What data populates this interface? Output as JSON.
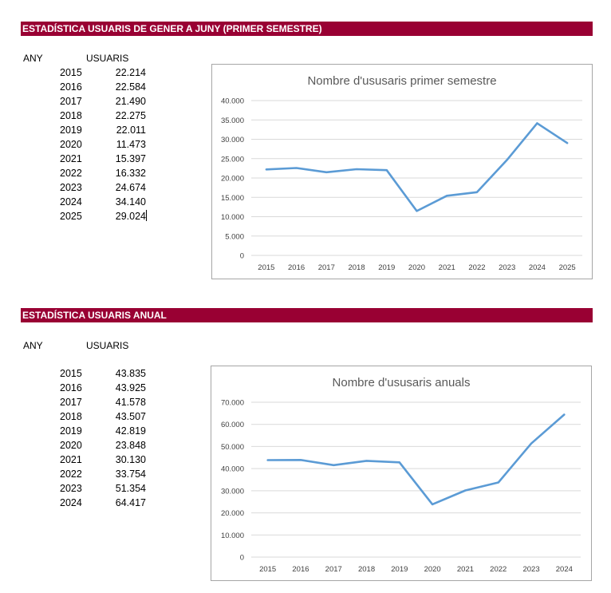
{
  "section1": {
    "banner": "ESTADÍSTICA USUARIS DE GENER A JUNY (PRIMER SEMESTRE)",
    "col_any": "ANY",
    "col_usuaris": "USUARIS",
    "rows": [
      {
        "year": "2015",
        "value": "22.214"
      },
      {
        "year": "2016",
        "value": "22.584"
      },
      {
        "year": "2017",
        "value": "21.490"
      },
      {
        "year": "2018",
        "value": "22.275"
      },
      {
        "year": "2019",
        "value": "22.011"
      },
      {
        "year": "2020",
        "value": "11.473"
      },
      {
        "year": "2021",
        "value": "15.397"
      },
      {
        "year": "2022",
        "value": "16.332"
      },
      {
        "year": "2023",
        "value": "24.674"
      },
      {
        "year": "2024",
        "value": "34.140"
      },
      {
        "year": "2025",
        "value": "29.024"
      }
    ]
  },
  "section2": {
    "banner": "ESTADÍSTICA USUARIS ANUAL",
    "col_any": "ANY",
    "col_usuaris": "USUARIS",
    "rows": [
      {
        "year": "2015",
        "value": "43.835"
      },
      {
        "year": "2016",
        "value": "43.925"
      },
      {
        "year": "2017",
        "value": "41.578"
      },
      {
        "year": "2018",
        "value": "43.507"
      },
      {
        "year": "2019",
        "value": "42.819"
      },
      {
        "year": "2020",
        "value": "23.848"
      },
      {
        "year": "2021",
        "value": "30.130"
      },
      {
        "year": "2022",
        "value": "33.754"
      },
      {
        "year": "2023",
        "value": "51.354"
      },
      {
        "year": "2024",
        "value": "64.417"
      }
    ]
  },
  "chart_data": [
    {
      "type": "line",
      "title": "Nombre d'ususaris primer semestre",
      "xlabel": "",
      "ylabel": "",
      "categories": [
        "2015",
        "2016",
        "2017",
        "2018",
        "2019",
        "2020",
        "2021",
        "2022",
        "2023",
        "2024",
        "2025"
      ],
      "series": [
        {
          "values": [
            22214,
            22584,
            21490,
            22275,
            22011,
            11473,
            15397,
            16332,
            24674,
            34140,
            29024
          ]
        }
      ],
      "ylim": [
        0,
        40000
      ],
      "yticks": [
        0,
        5000,
        10000,
        15000,
        20000,
        25000,
        30000,
        35000,
        40000
      ],
      "ytick_labels": [
        "0",
        "5.000",
        "10.000",
        "15.000",
        "20.000",
        "25.000",
        "30.000",
        "35.000",
        "40.000"
      ],
      "grid": true,
      "legend": "none",
      "line_color": "#5b9bd5"
    },
    {
      "type": "line",
      "title": "Nombre d'ususaris anuals",
      "xlabel": "",
      "ylabel": "",
      "categories": [
        "2015",
        "2016",
        "2017",
        "2018",
        "2019",
        "2020",
        "2021",
        "2022",
        "2023",
        "2024"
      ],
      "series": [
        {
          "values": [
            43835,
            43925,
            41578,
            43507,
            42819,
            23848,
            30130,
            33754,
            51354,
            64417
          ]
        }
      ],
      "ylim": [
        0,
        70000
      ],
      "yticks": [
        0,
        10000,
        20000,
        30000,
        40000,
        50000,
        60000,
        70000
      ],
      "ytick_labels": [
        "0",
        "10.000",
        "20.000",
        "30.000",
        "40.000",
        "50.000",
        "60.000",
        "70.000"
      ],
      "grid": true,
      "legend": "none",
      "line_color": "#5b9bd5"
    }
  ]
}
